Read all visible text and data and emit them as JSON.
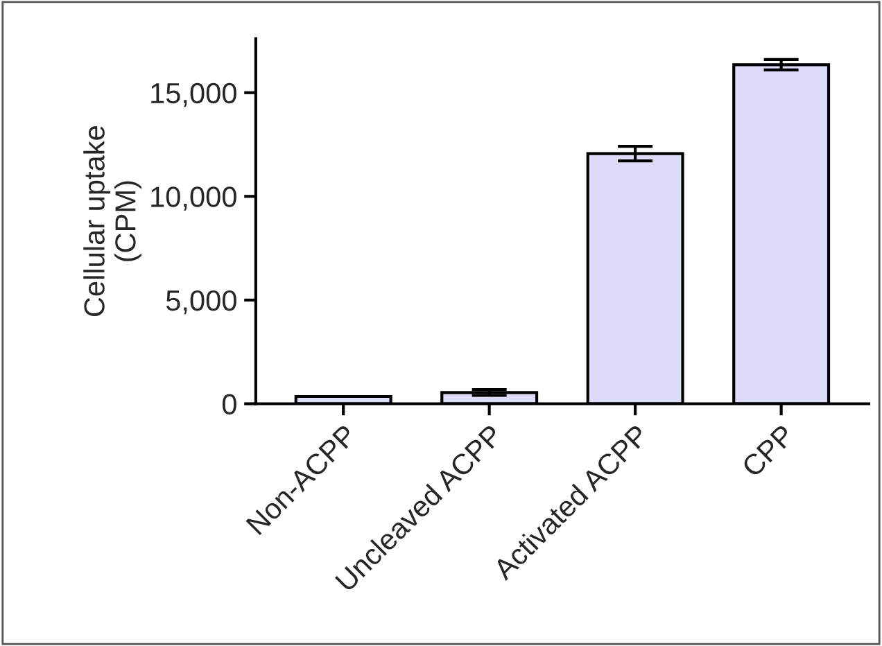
{
  "chart_data": {
    "type": "bar",
    "ylabel": "Cellular uptake\n(CPM)",
    "categories": [
      "Non-ACPP",
      "Uncleaved ACPP",
      "Activated ACPP",
      "CPP"
    ],
    "values": [
      350,
      540,
      12060,
      16350
    ],
    "errors": [
      null,
      140,
      350,
      250
    ],
    "color": "#dcdcf8",
    "ylim": [
      0,
      17600
    ],
    "yticks": [
      {
        "value": 0,
        "label": "0"
      },
      {
        "value": 5000,
        "label": "5,000"
      },
      {
        "value": 10000,
        "label": "10,000"
      },
      {
        "value": 15000,
        "label": "15,000"
      }
    ],
    "grid": false,
    "legend": false
  }
}
